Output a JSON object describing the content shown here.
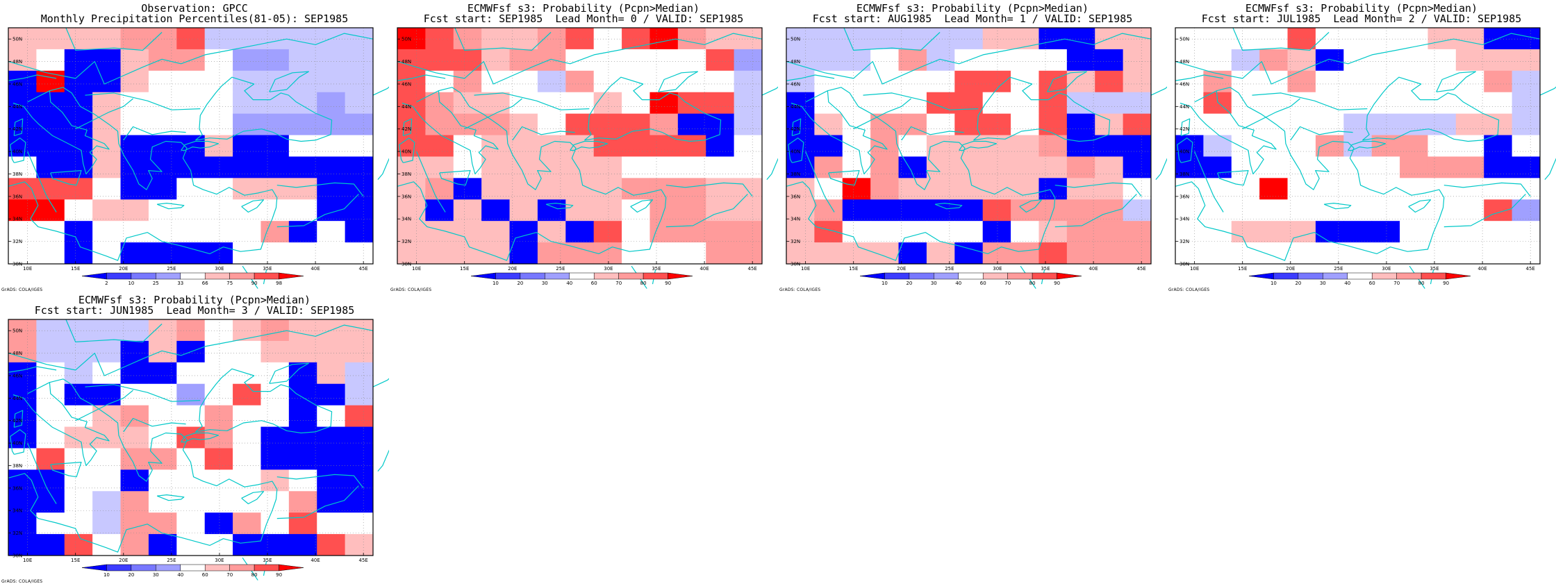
{
  "panels": [
    {
      "id": "obs",
      "title1": "Observation: GPCC",
      "title2": "Monthly Precipitation Percentiles(81-05): SEP1985",
      "colorbar": [
        "2",
        "10",
        "25",
        "33",
        "66",
        "75",
        "90",
        "98"
      ],
      "grid": [
        "4444332999999",
        "4055433088999",
        "5155400099999",
        "5554000099989",
        "5554000088888",
        "5554555455000",
        "0554555555555",
        "2220550044455",
        "1104400000055",
        "0050000003505",
        "0050555500000"
      ]
    },
    {
      "id": "fc0",
      "title1": "ECMWFsf s3: Probability (Pcpn>Median)",
      "title2": "Fcst start: SEP1985  Lead Month= 0 / VALID: SEP1985",
      "colorbar": [
        "10",
        "20",
        "30",
        "40",
        "60",
        "70",
        "80",
        "90"
      ],
      "grid": [
        "1234432021344",
        "2224330000028",
        "2030093000009",
        "2344000401229",
        "2333402223559",
        "2204444222250",
        "4404444400000",
        "4354444433344",
        "4545454403344",
        "4444545203333",
        "4444533300033"
      ]
    },
    {
      "id": "fc1",
      "title1": "ECMWFsf s3: Probability (Pcpn>Median)",
      "title2": "Fcst start: AUG1985  Lead Month= 1 / VALID: SEP1985",
      "colorbar": [
        "10",
        "20",
        "30",
        "40",
        "60",
        "70",
        "80",
        "90"
      ],
      "grid": [
        "9999999445544",
        "9990390000554",
        "9000002202424",
        "5000022002999",
        "5403302202542",
        "5503044443555",
        "5303544444345",
        "4013444445440",
        "4355555233339",
        "4200000504333",
        "4444545332333"
      ]
    },
    {
      "id": "fc2",
      "title1": "ECMWFsf s3: Probability (Pcpn>Median)",
      "title2": "Fcst start: JUL1985  Lead Month= 2 / VALID: SEP1985",
      "colorbar": [
        "10",
        "20",
        "30",
        "40",
        "60",
        "70",
        "80",
        "90"
      ],
      "grid": [
        "0000200004455",
        "0093450000444",
        "0300300000039",
        "0200000000009",
        "0000009999449",
        "5900039330050",
        "5500000033355",
        "0001000000000",
        "0000000000028",
        "0044455500000",
        "0000000000000"
      ]
    },
    {
      "id": "fc3",
      "title1": "ECMWFsf s3: Probability (Pcpn>Median)",
      "title2": "Fcst start: JUN1985  Lead Month= 3 / VALID: SEP1985",
      "colorbar": [
        "10",
        "20",
        "30",
        "40",
        "60",
        "70",
        "80",
        "90"
      ],
      "grid": [
        "3999943043444",
        "3999545004444",
        "5090550000549",
        "5055008020559",
        "5004300300502",
        "5044402305555",
        "0200330205555",
        "5500500004055",
        "5509300000355",
        "5009330530200",
        "5520350055524"
      ]
    }
  ],
  "ylabels": [
    "50N",
    "48N",
    "46N",
    "44N",
    "42N",
    "40N",
    "38N",
    "36N",
    "34N",
    "32N",
    "30N"
  ],
  "xlabels": [
    "10E",
    "15E",
    "20E",
    "25E",
    "30E",
    "35E",
    "40E",
    "45E"
  ],
  "credit": "GrADS: COLA/IGES",
  "colors": {
    "palette": [
      "#ffffff",
      "#ff0000",
      "#ff5050",
      "#ff9b9b",
      "#ffbebe",
      "#0000ff",
      "#3c3cff",
      "#7878ff",
      "#a0a0ff",
      "#c8c8ff"
    ],
    "legend": [
      "#0000ff",
      "#3c3cff",
      "#7878ff",
      "#a0a0ff",
      "#ffffff",
      "#ffbebe",
      "#ff9b9b",
      "#ff5050",
      "#ff0000"
    ],
    "coast": "#00c8c8",
    "gridline": "#888888",
    "frame": "#000000"
  }
}
